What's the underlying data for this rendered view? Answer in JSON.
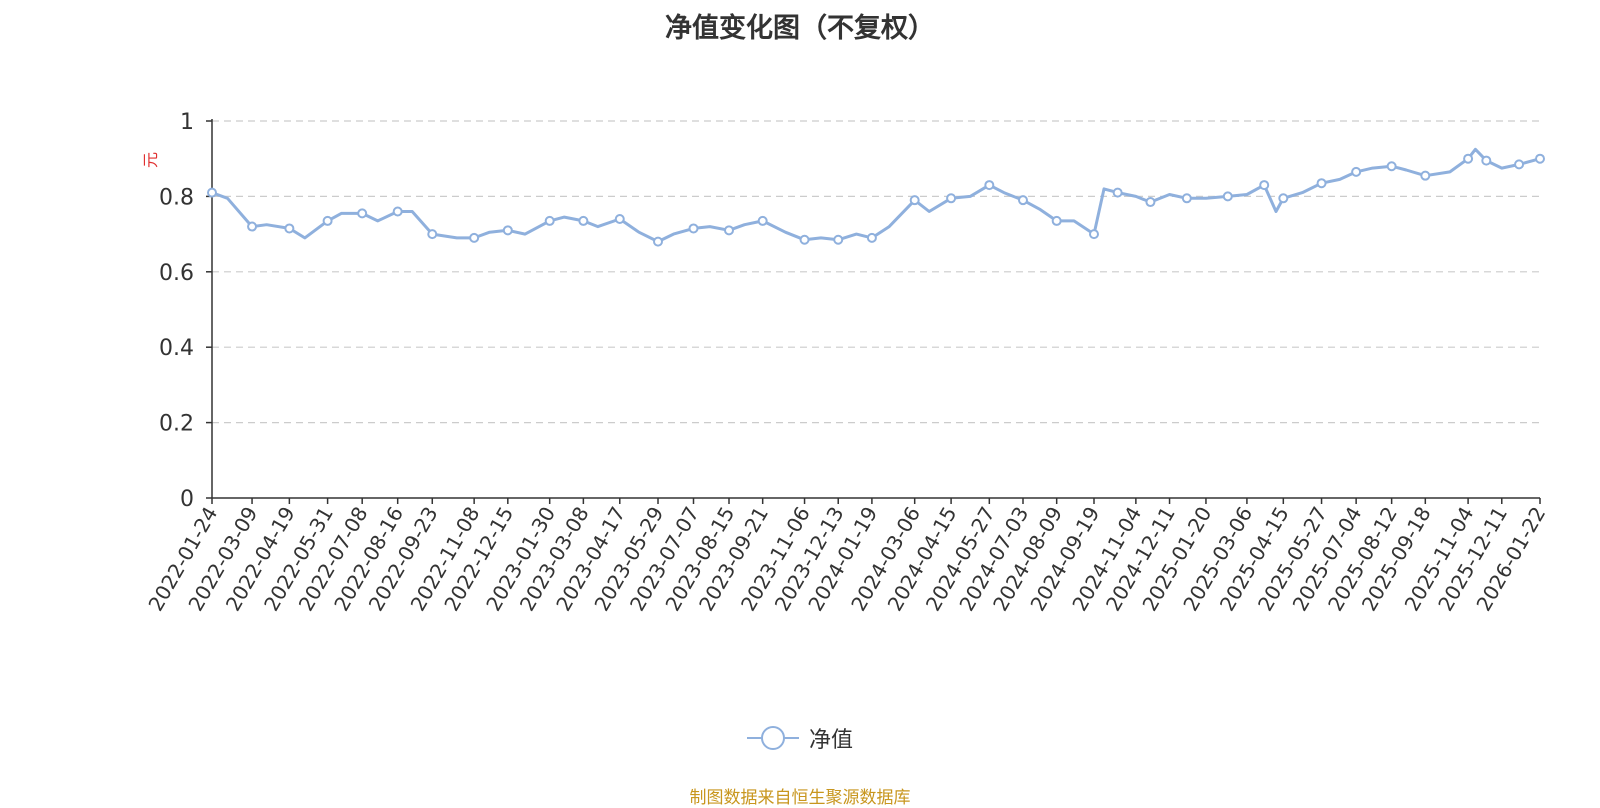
{
  "chart_data": {
    "type": "line",
    "title": "净值变化图（不复权）",
    "ylabel": "元",
    "xlabel": "",
    "ylim": [
      0,
      1
    ],
    "y_ticks": [
      0,
      0.2,
      0.4,
      0.6,
      0.8,
      1
    ],
    "grid": true,
    "legend_position": "bottom",
    "x_ticks": [
      "2022-01-24",
      "2022-03-09",
      "2022-04-19",
      "2022-05-31",
      "2022-07-08",
      "2022-08-16",
      "2022-09-23",
      "2022-11-08",
      "2022-12-15",
      "2023-01-30",
      "2023-03-08",
      "2023-04-17",
      "2023-05-29",
      "2023-07-07",
      "2023-08-15",
      "2023-09-21",
      "2023-11-06",
      "2023-12-13",
      "2024-01-19",
      "2024-03-06",
      "2024-04-15",
      "2024-05-27",
      "2024-07-03",
      "2024-08-09",
      "2024-09-19",
      "2024-11-04",
      "2024-12-11",
      "2025-01-20",
      "2025-03-06",
      "2025-04-15",
      "2025-05-27",
      "2025-07-04",
      "2025-08-12",
      "2025-09-18",
      "2025-11-04",
      "2025-12-11",
      "2026-01-22"
    ],
    "series": [
      {
        "name": "净值",
        "color": "#8fb0dd",
        "x": [
          "2022-01-24",
          "2022-02-10",
          "2022-03-09",
          "2022-03-25",
          "2022-04-19",
          "2022-05-06",
          "2022-05-31",
          "2022-06-15",
          "2022-07-08",
          "2022-07-25",
          "2022-08-16",
          "2022-09-01",
          "2022-09-23",
          "2022-10-20",
          "2022-11-08",
          "2022-11-25",
          "2022-12-15",
          "2023-01-03",
          "2023-01-30",
          "2023-02-15",
          "2023-03-08",
          "2023-03-24",
          "2023-04-17",
          "2023-05-08",
          "2023-05-29",
          "2023-06-15",
          "2023-07-07",
          "2023-07-25",
          "2023-08-15",
          "2023-09-01",
          "2023-09-21",
          "2023-10-16",
          "2023-11-06",
          "2023-11-24",
          "2023-12-13",
          "2024-01-02",
          "2024-01-19",
          "2024-02-07",
          "2024-03-06",
          "2024-03-22",
          "2024-04-15",
          "2024-05-06",
          "2024-05-27",
          "2024-06-12",
          "2024-07-03",
          "2024-07-22",
          "2024-08-09",
          "2024-08-28",
          "2024-09-19",
          "2024-09-30",
          "2024-10-15",
          "2024-11-04",
          "2024-11-20",
          "2024-12-11",
          "2024-12-30",
          "2025-01-20",
          "2025-02-13",
          "2025-03-06",
          "2025-03-25",
          "2025-04-07",
          "2025-04-15",
          "2025-05-06",
          "2025-05-27",
          "2025-06-16",
          "2025-07-04",
          "2025-07-22",
          "2025-08-12",
          "2025-08-28",
          "2025-09-18",
          "2025-10-15",
          "2025-11-04",
          "2025-11-12",
          "2025-11-24",
          "2025-12-11",
          "2025-12-30",
          "2026-01-22"
        ],
        "values": [
          0.81,
          0.795,
          0.72,
          0.725,
          0.715,
          0.69,
          0.735,
          0.755,
          0.755,
          0.735,
          0.76,
          0.76,
          0.7,
          0.69,
          0.69,
          0.705,
          0.71,
          0.7,
          0.735,
          0.745,
          0.735,
          0.72,
          0.74,
          0.705,
          0.68,
          0.7,
          0.715,
          0.72,
          0.71,
          0.725,
          0.735,
          0.705,
          0.685,
          0.69,
          0.685,
          0.7,
          0.69,
          0.72,
          0.79,
          0.76,
          0.795,
          0.8,
          0.83,
          0.81,
          0.79,
          0.765,
          0.735,
          0.735,
          0.7,
          0.82,
          0.81,
          0.8,
          0.785,
          0.805,
          0.795,
          0.795,
          0.8,
          0.805,
          0.83,
          0.76,
          0.795,
          0.81,
          0.835,
          0.845,
          0.865,
          0.875,
          0.88,
          0.87,
          0.855,
          0.865,
          0.9,
          0.925,
          0.895,
          0.875,
          0.885,
          0.9
        ]
      }
    ],
    "legend": [
      {
        "label": "净值",
        "icon": "circle-line-icon"
      }
    ]
  },
  "footer": {
    "source": "制图数据来自恒生聚源数据库"
  }
}
